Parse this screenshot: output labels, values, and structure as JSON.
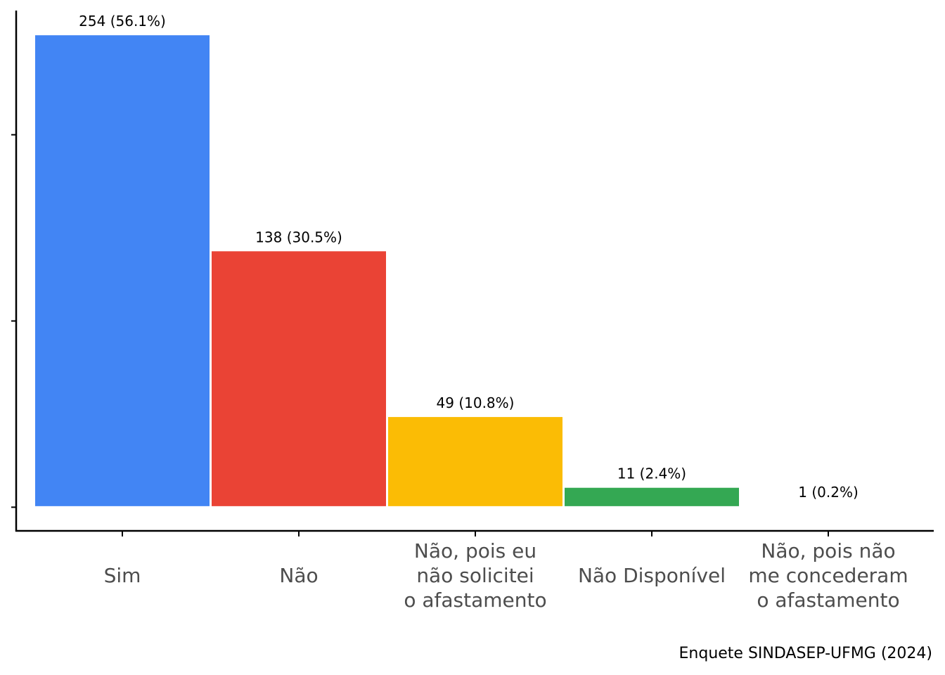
{
  "chart_data": {
    "type": "bar",
    "categories": [
      "Sim",
      "Não",
      "Não, pois eu\nnão solicitei\no afastamento",
      "Não Disponível",
      "Não, pois não\nme concederam\no afastamento"
    ],
    "values": [
      254,
      138,
      49,
      11,
      1
    ],
    "value_labels": [
      "254 (56.1%)",
      "138 (30.5%)",
      "49 (10.8%)",
      "11 (2.4%)",
      "1 (0.2%)"
    ],
    "colors": [
      "#4285f4",
      "#ea4335",
      "#fbbc05",
      "#34a853",
      "#ffffff"
    ],
    "ylim": [
      -12.7,
      266.7
    ],
    "yticks": [
      0,
      100,
      200
    ],
    "caption": "Enquete SINDASEP-UFMG (2024)"
  }
}
